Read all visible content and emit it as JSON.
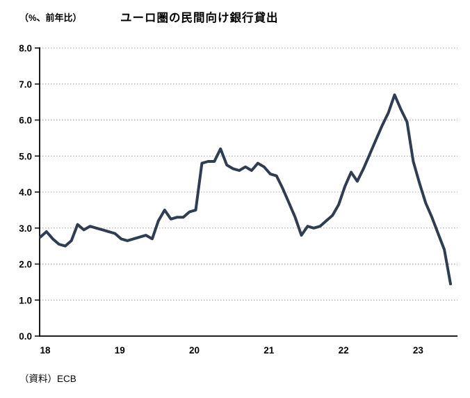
{
  "page": {
    "background": "#ffffff"
  },
  "chart_data": {
    "type": "line",
    "title": "ユーロ圏の民間向け銀行貸出",
    "unit_label": "（%、前年比）",
    "source": "（資料）ECB",
    "legend": "none",
    "grid": "horizontal-dotted",
    "ylim": [
      0.0,
      8.0
    ],
    "y_ticks": [
      "8.0",
      "7.0",
      "6.0",
      "5.0",
      "4.0",
      "3.0",
      "2.0",
      "1.0",
      "0.0"
    ],
    "x_ticks": [
      "18",
      "19",
      "20",
      "21",
      "22",
      "23"
    ],
    "line_color": "#2f3d52",
    "gridline_color": "#a0a0a0",
    "axis_color": "#000000",
    "x": [
      "2018-01",
      "2018-02",
      "2018-03",
      "2018-04",
      "2018-05",
      "2018-06",
      "2018-07",
      "2018-08",
      "2018-09",
      "2018-10",
      "2018-11",
      "2018-12",
      "2019-01",
      "2019-02",
      "2019-03",
      "2019-04",
      "2019-05",
      "2019-06",
      "2019-07",
      "2019-08",
      "2019-09",
      "2019-10",
      "2019-11",
      "2019-12",
      "2020-01",
      "2020-02",
      "2020-03",
      "2020-04",
      "2020-05",
      "2020-06",
      "2020-07",
      "2020-08",
      "2020-09",
      "2020-10",
      "2020-11",
      "2020-12",
      "2021-01",
      "2021-02",
      "2021-03",
      "2021-04",
      "2021-05",
      "2021-06",
      "2021-07",
      "2021-08",
      "2021-09",
      "2021-10",
      "2021-11",
      "2021-12",
      "2022-01",
      "2022-02",
      "2022-03",
      "2022-04",
      "2022-05",
      "2022-06",
      "2022-07",
      "2022-08",
      "2022-09",
      "2022-10",
      "2022-11",
      "2022-12",
      "2023-01",
      "2023-02",
      "2023-03",
      "2023-04",
      "2023-05",
      "2023-06",
      "2023-07"
    ],
    "series": [
      {
        "name": "民間向け銀行貸出",
        "values": [
          2.75,
          2.9,
          2.7,
          2.55,
          2.5,
          2.65,
          3.1,
          2.95,
          3.05,
          3.0,
          2.95,
          2.9,
          2.85,
          2.7,
          2.65,
          2.7,
          2.75,
          2.8,
          2.7,
          3.2,
          3.5,
          3.25,
          3.3,
          3.3,
          3.45,
          3.5,
          4.8,
          4.85,
          4.85,
          5.2,
          4.75,
          4.65,
          4.6,
          4.7,
          4.6,
          4.8,
          4.7,
          4.5,
          4.45,
          4.1,
          3.7,
          3.3,
          2.8,
          3.05,
          3.0,
          3.05,
          3.2,
          3.35,
          3.65,
          4.15,
          4.55,
          4.3,
          4.65,
          5.05,
          5.45,
          5.85,
          6.2,
          6.7,
          6.3,
          5.95,
          4.85,
          4.25,
          3.7,
          3.3,
          2.85,
          2.4,
          1.45
        ]
      }
    ]
  }
}
